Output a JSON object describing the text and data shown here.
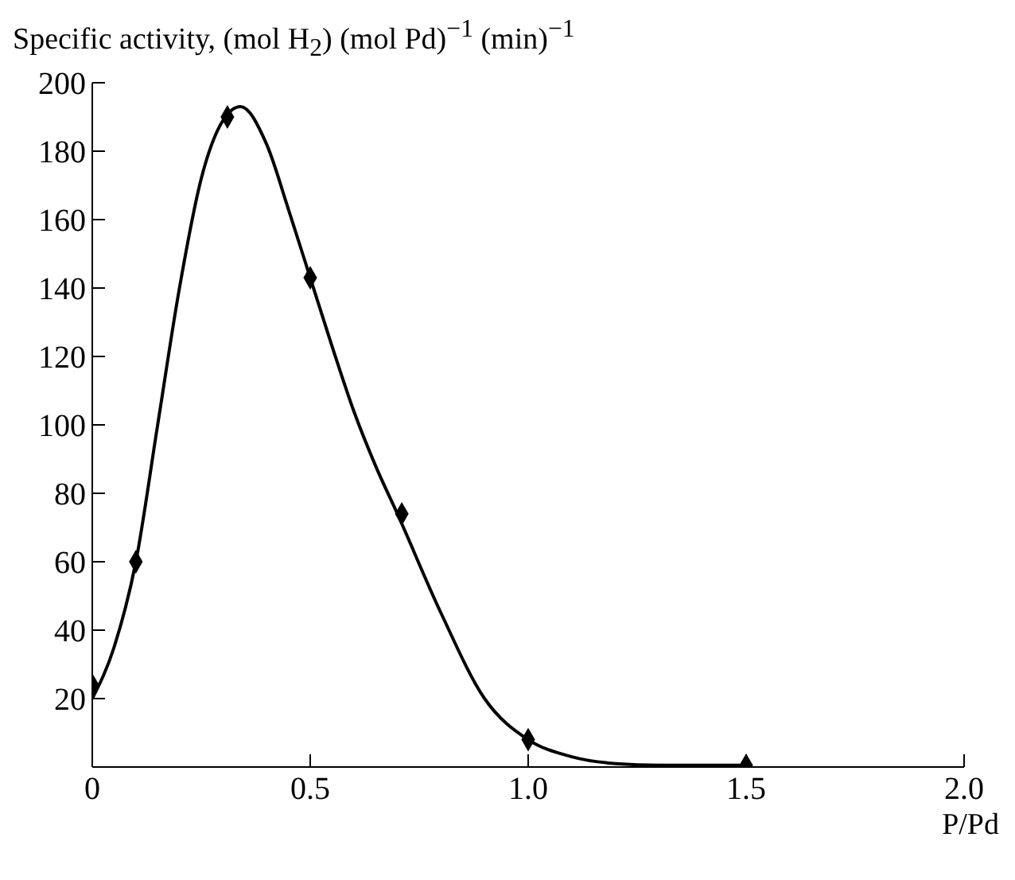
{
  "chart_data": {
    "type": "scatter",
    "ylabel": "Specific activity, (mol H$_{2}$) (mol Pd)$^{−1}$ (min)$^{−1}$",
    "xlabel": "P/Pd",
    "xlim": [
      0,
      2.0
    ],
    "xticks": [
      0,
      0.5,
      {
        "value": 1.0,
        "label": "1.0"
      },
      1.5,
      {
        "value": 2.0,
        "label": "2.0"
      }
    ],
    "ylim": [
      0,
      200
    ],
    "yticks": [
      20,
      40,
      60,
      80,
      100,
      120,
      140,
      160,
      180,
      200
    ],
    "series": [
      {
        "marker": "diamond",
        "color": "#000000",
        "x": [
          0,
          0.1,
          0.31,
          0.5,
          0.71,
          1.0,
          1.5
        ],
        "values": [
          24,
          60,
          190,
          143,
          74,
          8,
          0.5
        ]
      },
      {
        "type": "line",
        "marker": "none",
        "color": "#000000",
        "x": [
          0,
          0.05,
          0.1,
          0.15,
          0.2,
          0.25,
          0.3,
          0.34,
          0.4,
          0.45,
          0.5,
          0.55,
          0.6,
          0.65,
          0.7,
          0.8,
          0.9,
          1.0,
          1.1,
          1.2,
          1.3,
          1.5
        ],
        "values": [
          20,
          35,
          60,
          100,
          140,
          172,
          189,
          193,
          182,
          163,
          143,
          123,
          104,
          88,
          74,
          45,
          20,
          8,
          3,
          1,
          0.5,
          0.5
        ]
      }
    ]
  }
}
